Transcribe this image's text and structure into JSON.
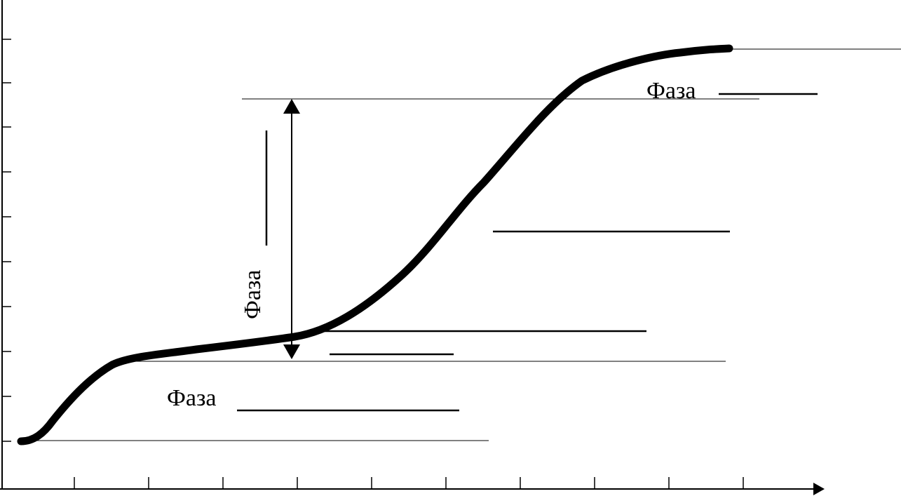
{
  "diagram": {
    "labels": {
      "phase_top_right": "Фаза",
      "phase_vertical": "Фаза",
      "phase_bottom": "Фаза"
    },
    "colors": {
      "curve": "#000000",
      "lines": "#000000",
      "background": "#ffffff"
    }
  }
}
